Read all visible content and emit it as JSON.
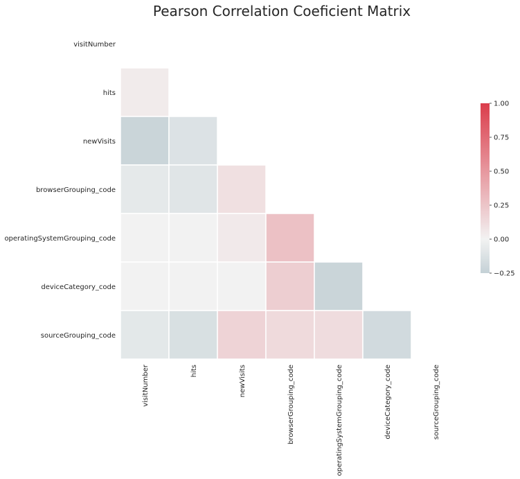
{
  "chart_data": {
    "type": "heatmap",
    "title": "Pearson Correlation Coeficient Matrix",
    "variables": [
      "visitNumber",
      "hits",
      "newVisits",
      "browserGrouping_code",
      "operatingSystemGrouping_code",
      "deviceCategory_code",
      "sourceGrouping_code"
    ],
    "mask": "upper-triangle-including-diagonal",
    "matrix": [
      [
        null,
        null,
        null,
        null,
        null,
        null,
        null
      ],
      [
        0.04,
        null,
        null,
        null,
        null,
        null,
        null
      ],
      [
        -0.22,
        -0.12,
        null,
        null,
        null,
        null,
        null
      ],
      [
        -0.07,
        -0.1,
        0.1,
        null,
        null,
        null,
        null
      ],
      [
        0.0,
        0.0,
        0.05,
        0.27,
        null,
        null,
        null
      ],
      [
        0.0,
        0.0,
        0.0,
        0.2,
        -0.22,
        null,
        null
      ],
      [
        -0.08,
        -0.14,
        0.17,
        0.13,
        0.12,
        -0.18,
        null
      ]
    ],
    "colorbar": {
      "range": [
        -0.25,
        1.0
      ],
      "ticks": [
        -0.25,
        0.0,
        0.25,
        0.5,
        0.75,
        1.0
      ],
      "tick_labels": [
        "−0.25",
        "0.00",
        "0.25",
        "0.50",
        "0.75",
        "1.00"
      ],
      "low_color": "#3b6f82",
      "mid_color": "#f2f2f2",
      "high_color": "#db3d4b"
    }
  }
}
